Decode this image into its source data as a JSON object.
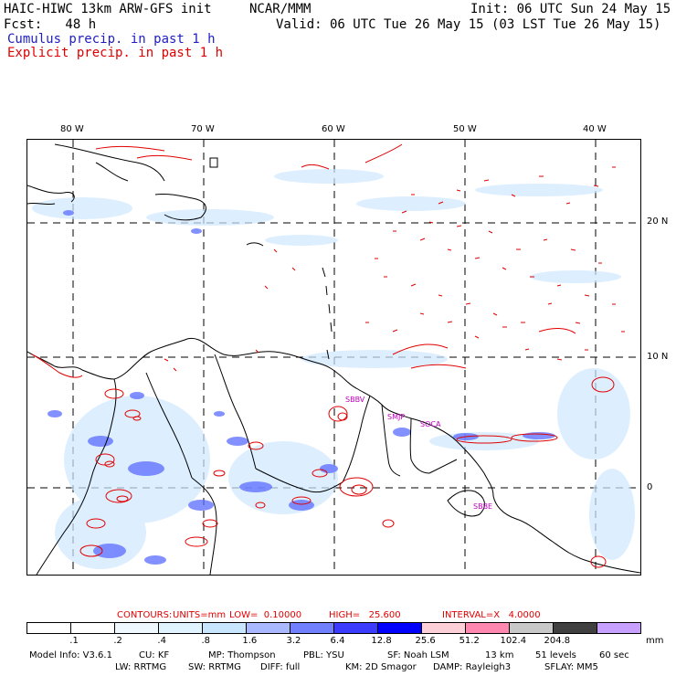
{
  "header": {
    "model_title": "HAIC-HIWC 13km ARW-GFS init",
    "org": "NCAR/MMM",
    "init": "Init: 06 UTC Sun 24 May 15",
    "fcst": "Fcst:   48 h",
    "valid": "Valid: 06 UTC Tue 26 May 15 (03 LST Tue 26 May 15)",
    "cumulus_label": "Cumulus precip. in past 1 h",
    "explicit_label": "Explicit precip. in past 1 h"
  },
  "map": {
    "lon_labels": [
      "80 W",
      "70 W",
      "60 W",
      "50 W",
      "40 W"
    ],
    "lat_labels": [
      "20 N",
      "10 N",
      "0"
    ],
    "station_labels": [
      "SBBV",
      "SMJP",
      "SOCA",
      "SBBE"
    ],
    "coast_color": "#000000",
    "cumulus_color": "#4a5cff",
    "explicit_color": "#e00000"
  },
  "contours": {
    "prefix": "CONTOURS:",
    "units": "UNITS=mm",
    "low": "LOW=  0.10000",
    "high": "HIGH=   25.600",
    "interval": "INTERVAL=X   4.0000"
  },
  "colorbar": {
    "labels": [
      ".1",
      ".2",
      ".4",
      ".8",
      "1.6",
      "3.2",
      "6.4",
      "12.8",
      "25.6",
      "51.2",
      "102.4",
      "204.8"
    ],
    "unit": "mm",
    "colors": [
      "#ffffff",
      "#ffffff",
      "#f0f8ff",
      "#e0f4ff",
      "#c8e6ff",
      "#aab8ff",
      "#7080ff",
      "#3c3cff",
      "#0000ff",
      "#ffd0d8",
      "#ff88b0",
      "#c8c8c8",
      "#404040",
      "#c8a0ff"
    ]
  },
  "footer": {
    "line1": {
      "model_info": "Model Info: V3.6.1",
      "cu": "CU: KF",
      "mp": "MP: Thompson",
      "pbl": "PBL: YSU",
      "sf": "SF: Noah LSM",
      "res": "13 km",
      "levels": "51 levels",
      "dt": "60 sec"
    },
    "line2": {
      "lw": "LW: RRTMG",
      "sw": "SW: RRTMG",
      "diff": "DIFF: full",
      "km": "KM: 2D Smagor",
      "damp": "DAMP: Rayleigh3",
      "sflay": "SFLAY: MM5"
    }
  }
}
